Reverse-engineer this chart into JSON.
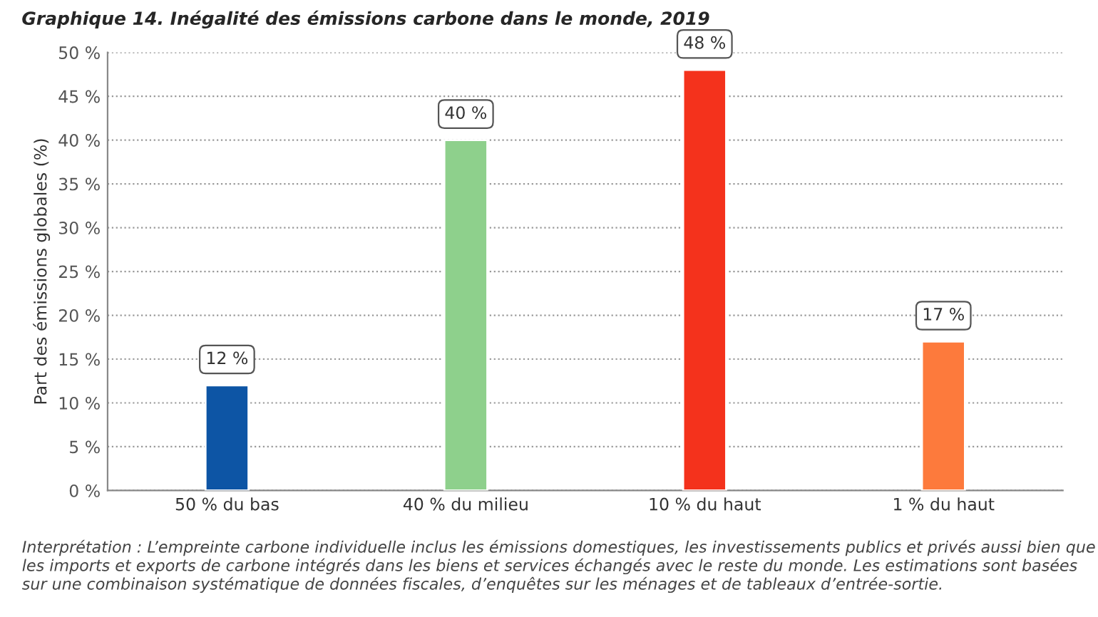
{
  "chart_data": {
    "type": "bar",
    "title": "Graphique 14. Inégalité des émissions carbone dans le monde, 2019",
    "ylabel": "Part des émissions globales (%)",
    "categories": [
      "50 % du bas",
      "40 % du milieu",
      "10 % du haut",
      "1 % du haut"
    ],
    "values": [
      12,
      40,
      48,
      17
    ],
    "colors": [
      "#0d55a5",
      "#8ed08c",
      "#f4321c",
      "#fd7a3c"
    ],
    "value_labels": [
      "12 %",
      "40 %",
      "48 %",
      "17 %"
    ],
    "ylim": [
      0,
      50
    ],
    "yticks": [
      {
        "value": 0,
        "label": "0 %"
      },
      {
        "value": 5,
        "label": "5 %"
      },
      {
        "value": 10,
        "label": "10 %"
      },
      {
        "value": 15,
        "label": "15 %"
      },
      {
        "value": 20,
        "label": "20 %"
      },
      {
        "value": 25,
        "label": "25 %"
      },
      {
        "value": 30,
        "label": "30 %"
      },
      {
        "value": 35,
        "label": "35 %"
      },
      {
        "value": 40,
        "label": "40 %"
      },
      {
        "value": 45,
        "label": "45 %"
      },
      {
        "value": 50,
        "label": "50 %"
      }
    ],
    "grid": "y",
    "legend": false,
    "annotations": [
      "Interprétation : L’empreinte carbone individuelle inclus les émissions domestiques, les investissements publics et privés aussi bien que les imports et exports de carbone intégrés dans les biens et services échangés avec le reste du monde. Les estimations sont basées sur une combinaison systématique de données fiscales, d’enquêtes sur les ménages et de tableaux d’entrée-sortie."
    ]
  }
}
